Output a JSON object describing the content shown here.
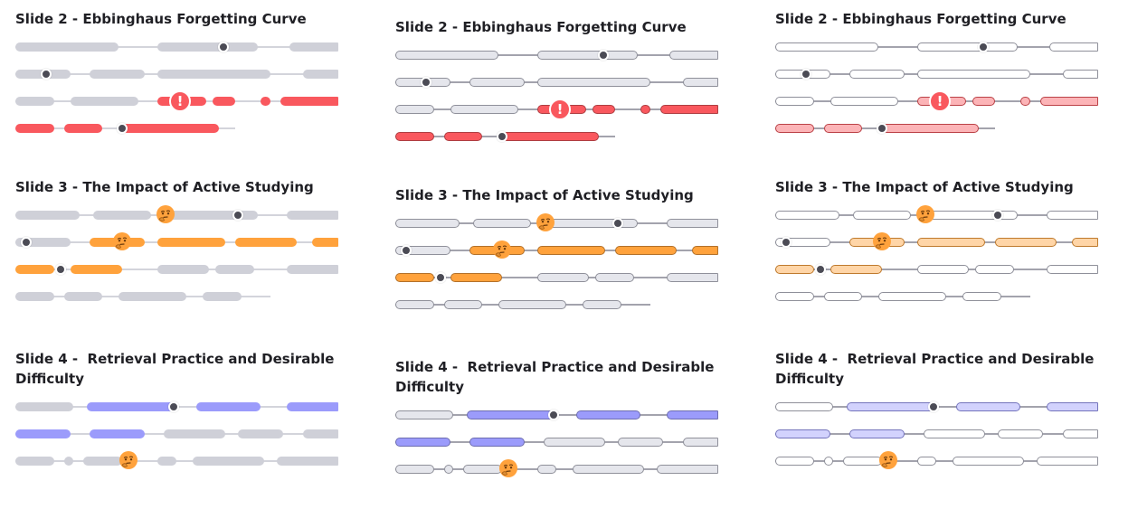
{
  "colors": {
    "gray": "#cfd0d8",
    "red": "#f9585e",
    "orange": "#ffa23c",
    "purple": "#9b9bfb",
    "marker": "#4b4b55",
    "face": "#ffa23c"
  },
  "variants": [
    "solid",
    "outlined",
    "pale"
  ],
  "sections": [
    {
      "title": "Slide 2 - Ebbinghaus Forgetting Curve",
      "tracks": [
        {
          "axis_end": 1.0,
          "pills": [
            [
              0.0,
              0.32,
              "gray"
            ],
            [
              0.44,
              0.75,
              "gray"
            ],
            [
              0.85,
              1.0,
              "gray"
            ]
          ],
          "dot": 0.645,
          "icons": []
        },
        {
          "axis_end": 1.0,
          "pills": [
            [
              0.0,
              0.17,
              "gray"
            ],
            [
              0.23,
              0.4,
              "gray"
            ],
            [
              0.44,
              0.79,
              "gray"
            ],
            [
              0.89,
              1.0,
              "gray"
            ]
          ],
          "dot": 0.095,
          "icons": []
        },
        {
          "axis_end": 1.0,
          "pills": [
            [
              0.0,
              0.12,
              "gray"
            ],
            [
              0.17,
              0.38,
              "gray"
            ],
            [
              0.44,
              0.59,
              "red"
            ],
            [
              0.61,
              0.68,
              "red"
            ],
            [
              0.76,
              0.79,
              "red"
            ],
            [
              0.82,
              1.0,
              "red"
            ]
          ],
          "dot": null,
          "icons": [
            {
              "type": "alert",
              "pos": 0.51,
              "glyph": "!"
            }
          ]
        },
        {
          "axis_end": 0.68,
          "pills": [
            [
              0.0,
              0.12,
              "red"
            ],
            [
              0.15,
              0.27,
              "red"
            ],
            [
              0.33,
              0.63,
              "red"
            ]
          ],
          "dot": 0.33,
          "icons": []
        }
      ]
    },
    {
      "title": "Slide 3 - The Impact of Active Studying",
      "tracks": [
        {
          "axis_end": 1.0,
          "pills": [
            [
              0.0,
              0.2,
              "gray"
            ],
            [
              0.24,
              0.42,
              "gray"
            ],
            [
              0.46,
              0.75,
              "gray"
            ],
            [
              0.84,
              1.0,
              "gray"
            ]
          ],
          "dot": 0.69,
          "icons": [
            {
              "type": "face",
              "pos": 0.465
            }
          ]
        },
        {
          "axis_end": 1.0,
          "pills": [
            [
              0.0,
              0.17,
              "gray"
            ],
            [
              0.23,
              0.4,
              "orange"
            ],
            [
              0.44,
              0.65,
              "orange"
            ],
            [
              0.68,
              0.87,
              "orange"
            ],
            [
              0.92,
              1.0,
              "orange"
            ]
          ],
          "dot": 0.035,
          "icons": [
            {
              "type": "face",
              "pos": 0.33
            }
          ]
        },
        {
          "axis_end": 1.0,
          "pills": [
            [
              0.0,
              0.12,
              "orange"
            ],
            [
              0.17,
              0.33,
              "orange"
            ],
            [
              0.44,
              0.6,
              "gray"
            ],
            [
              0.62,
              0.74,
              "gray"
            ],
            [
              0.84,
              1.0,
              "gray"
            ]
          ],
          "dot": 0.14,
          "icons": []
        },
        {
          "axis_end": 0.79,
          "pills": [
            [
              0.0,
              0.12,
              "gray"
            ],
            [
              0.15,
              0.27,
              "gray"
            ],
            [
              0.32,
              0.53,
              "gray"
            ],
            [
              0.58,
              0.7,
              "gray"
            ]
          ],
          "dot": null,
          "icons": []
        }
      ]
    },
    {
      "title": "Slide 4 -  Retrieval Practice and Desirable\nDifficulty",
      "tracks": [
        {
          "axis_end": 1.0,
          "pills": [
            [
              0.0,
              0.18,
              "gray"
            ],
            [
              0.22,
              0.5,
              "purple"
            ],
            [
              0.56,
              0.76,
              "purple"
            ],
            [
              0.84,
              1.0,
              "purple"
            ]
          ],
          "dot": 0.49,
          "icons": []
        },
        {
          "axis_end": 1.0,
          "pills": [
            [
              0.0,
              0.17,
              "purple"
            ],
            [
              0.23,
              0.4,
              "purple"
            ],
            [
              0.46,
              0.65,
              "gray"
            ],
            [
              0.69,
              0.83,
              "gray"
            ],
            [
              0.89,
              1.0,
              "gray"
            ]
          ],
          "dot": null,
          "icons": []
        },
        {
          "axis_end": 1.0,
          "pills": [
            [
              0.0,
              0.12,
              "gray"
            ],
            [
              0.15,
              0.18,
              "gray"
            ],
            [
              0.21,
              0.33,
              "gray"
            ],
            [
              0.44,
              0.5,
              "gray"
            ],
            [
              0.55,
              0.77,
              "gray"
            ],
            [
              0.81,
              1.0,
              "gray"
            ]
          ],
          "dot": null,
          "icons": [
            {
              "type": "face",
              "pos": 0.35
            }
          ]
        }
      ]
    }
  ]
}
